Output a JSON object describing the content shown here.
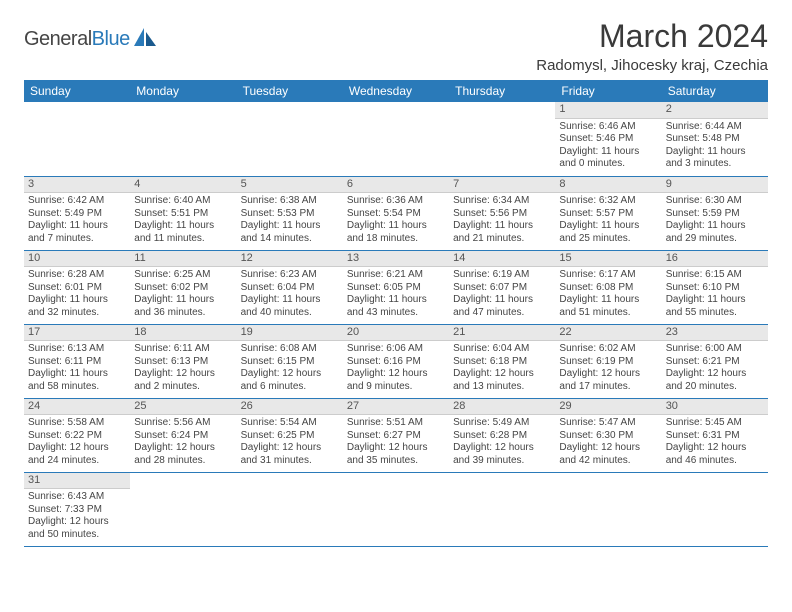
{
  "logo": {
    "text1": "General",
    "text2": "Blue"
  },
  "title": "March 2024",
  "location": "Radomysl, Jihocesky kraj, Czechia",
  "colors": {
    "header_bg": "#2a7ab9",
    "header_text": "#ffffff",
    "daynum_bg": "#e8e8e8",
    "cell_border": "#2a7ab9",
    "body_text": "#454545"
  },
  "daysOfWeek": [
    "Sunday",
    "Monday",
    "Tuesday",
    "Wednesday",
    "Thursday",
    "Friday",
    "Saturday"
  ],
  "weeks": [
    [
      null,
      null,
      null,
      null,
      null,
      {
        "n": "1",
        "sr": "Sunrise: 6:46 AM",
        "ss": "Sunset: 5:46 PM",
        "d1": "Daylight: 11 hours",
        "d2": "and 0 minutes."
      },
      {
        "n": "2",
        "sr": "Sunrise: 6:44 AM",
        "ss": "Sunset: 5:48 PM",
        "d1": "Daylight: 11 hours",
        "d2": "and 3 minutes."
      }
    ],
    [
      {
        "n": "3",
        "sr": "Sunrise: 6:42 AM",
        "ss": "Sunset: 5:49 PM",
        "d1": "Daylight: 11 hours",
        "d2": "and 7 minutes."
      },
      {
        "n": "4",
        "sr": "Sunrise: 6:40 AM",
        "ss": "Sunset: 5:51 PM",
        "d1": "Daylight: 11 hours",
        "d2": "and 11 minutes."
      },
      {
        "n": "5",
        "sr": "Sunrise: 6:38 AM",
        "ss": "Sunset: 5:53 PM",
        "d1": "Daylight: 11 hours",
        "d2": "and 14 minutes."
      },
      {
        "n": "6",
        "sr": "Sunrise: 6:36 AM",
        "ss": "Sunset: 5:54 PM",
        "d1": "Daylight: 11 hours",
        "d2": "and 18 minutes."
      },
      {
        "n": "7",
        "sr": "Sunrise: 6:34 AM",
        "ss": "Sunset: 5:56 PM",
        "d1": "Daylight: 11 hours",
        "d2": "and 21 minutes."
      },
      {
        "n": "8",
        "sr": "Sunrise: 6:32 AM",
        "ss": "Sunset: 5:57 PM",
        "d1": "Daylight: 11 hours",
        "d2": "and 25 minutes."
      },
      {
        "n": "9",
        "sr": "Sunrise: 6:30 AM",
        "ss": "Sunset: 5:59 PM",
        "d1": "Daylight: 11 hours",
        "d2": "and 29 minutes."
      }
    ],
    [
      {
        "n": "10",
        "sr": "Sunrise: 6:28 AM",
        "ss": "Sunset: 6:01 PM",
        "d1": "Daylight: 11 hours",
        "d2": "and 32 minutes."
      },
      {
        "n": "11",
        "sr": "Sunrise: 6:25 AM",
        "ss": "Sunset: 6:02 PM",
        "d1": "Daylight: 11 hours",
        "d2": "and 36 minutes."
      },
      {
        "n": "12",
        "sr": "Sunrise: 6:23 AM",
        "ss": "Sunset: 6:04 PM",
        "d1": "Daylight: 11 hours",
        "d2": "and 40 minutes."
      },
      {
        "n": "13",
        "sr": "Sunrise: 6:21 AM",
        "ss": "Sunset: 6:05 PM",
        "d1": "Daylight: 11 hours",
        "d2": "and 43 minutes."
      },
      {
        "n": "14",
        "sr": "Sunrise: 6:19 AM",
        "ss": "Sunset: 6:07 PM",
        "d1": "Daylight: 11 hours",
        "d2": "and 47 minutes."
      },
      {
        "n": "15",
        "sr": "Sunrise: 6:17 AM",
        "ss": "Sunset: 6:08 PM",
        "d1": "Daylight: 11 hours",
        "d2": "and 51 minutes."
      },
      {
        "n": "16",
        "sr": "Sunrise: 6:15 AM",
        "ss": "Sunset: 6:10 PM",
        "d1": "Daylight: 11 hours",
        "d2": "and 55 minutes."
      }
    ],
    [
      {
        "n": "17",
        "sr": "Sunrise: 6:13 AM",
        "ss": "Sunset: 6:11 PM",
        "d1": "Daylight: 11 hours",
        "d2": "and 58 minutes."
      },
      {
        "n": "18",
        "sr": "Sunrise: 6:11 AM",
        "ss": "Sunset: 6:13 PM",
        "d1": "Daylight: 12 hours",
        "d2": "and 2 minutes."
      },
      {
        "n": "19",
        "sr": "Sunrise: 6:08 AM",
        "ss": "Sunset: 6:15 PM",
        "d1": "Daylight: 12 hours",
        "d2": "and 6 minutes."
      },
      {
        "n": "20",
        "sr": "Sunrise: 6:06 AM",
        "ss": "Sunset: 6:16 PM",
        "d1": "Daylight: 12 hours",
        "d2": "and 9 minutes."
      },
      {
        "n": "21",
        "sr": "Sunrise: 6:04 AM",
        "ss": "Sunset: 6:18 PM",
        "d1": "Daylight: 12 hours",
        "d2": "and 13 minutes."
      },
      {
        "n": "22",
        "sr": "Sunrise: 6:02 AM",
        "ss": "Sunset: 6:19 PM",
        "d1": "Daylight: 12 hours",
        "d2": "and 17 minutes."
      },
      {
        "n": "23",
        "sr": "Sunrise: 6:00 AM",
        "ss": "Sunset: 6:21 PM",
        "d1": "Daylight: 12 hours",
        "d2": "and 20 minutes."
      }
    ],
    [
      {
        "n": "24",
        "sr": "Sunrise: 5:58 AM",
        "ss": "Sunset: 6:22 PM",
        "d1": "Daylight: 12 hours",
        "d2": "and 24 minutes."
      },
      {
        "n": "25",
        "sr": "Sunrise: 5:56 AM",
        "ss": "Sunset: 6:24 PM",
        "d1": "Daylight: 12 hours",
        "d2": "and 28 minutes."
      },
      {
        "n": "26",
        "sr": "Sunrise: 5:54 AM",
        "ss": "Sunset: 6:25 PM",
        "d1": "Daylight: 12 hours",
        "d2": "and 31 minutes."
      },
      {
        "n": "27",
        "sr": "Sunrise: 5:51 AM",
        "ss": "Sunset: 6:27 PM",
        "d1": "Daylight: 12 hours",
        "d2": "and 35 minutes."
      },
      {
        "n": "28",
        "sr": "Sunrise: 5:49 AM",
        "ss": "Sunset: 6:28 PM",
        "d1": "Daylight: 12 hours",
        "d2": "and 39 minutes."
      },
      {
        "n": "29",
        "sr": "Sunrise: 5:47 AM",
        "ss": "Sunset: 6:30 PM",
        "d1": "Daylight: 12 hours",
        "d2": "and 42 minutes."
      },
      {
        "n": "30",
        "sr": "Sunrise: 5:45 AM",
        "ss": "Sunset: 6:31 PM",
        "d1": "Daylight: 12 hours",
        "d2": "and 46 minutes."
      }
    ],
    [
      {
        "n": "31",
        "sr": "Sunrise: 6:43 AM",
        "ss": "Sunset: 7:33 PM",
        "d1": "Daylight: 12 hours",
        "d2": "and 50 minutes."
      },
      null,
      null,
      null,
      null,
      null,
      null
    ]
  ]
}
